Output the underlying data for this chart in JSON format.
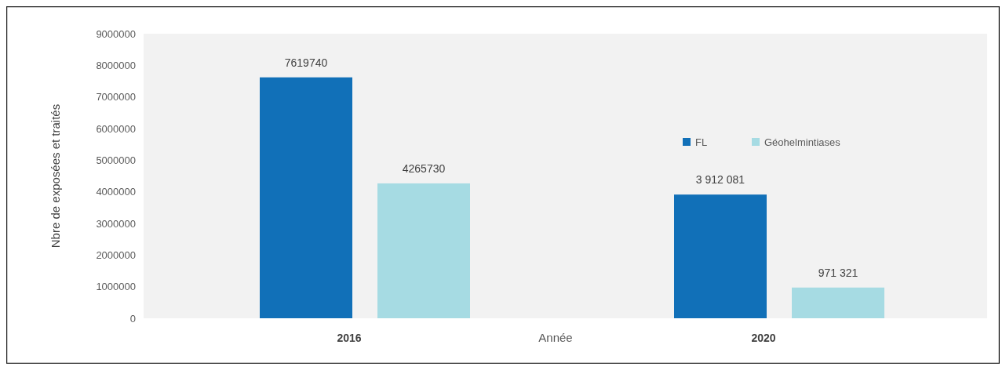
{
  "chart_data": {
    "type": "bar",
    "xlabel": "Année",
    "ylabel": "Nbre de exposées et traités",
    "categories": [
      "2016",
      "2020"
    ],
    "series": [
      {
        "name": "FL",
        "color": "#1170b8",
        "values": [
          7619740,
          3912081
        ],
        "value_labels": [
          "7619740",
          "3 912 081"
        ]
      },
      {
        "name": "Géohelmintiases",
        "color": "#a6dbe3",
        "values": [
          4265730,
          971321
        ],
        "value_labels": [
          "4265730",
          "971 321"
        ]
      }
    ],
    "ylim": [
      0,
      9000000
    ],
    "yticks": [
      0,
      1000000,
      2000000,
      3000000,
      4000000,
      5000000,
      6000000,
      7000000,
      8000000,
      9000000
    ],
    "grid": false,
    "legend": "top right"
  }
}
